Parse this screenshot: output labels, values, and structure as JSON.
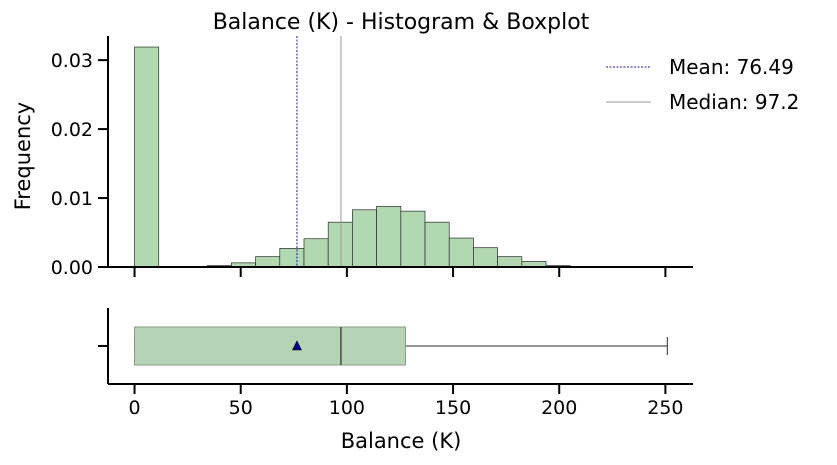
{
  "chart_data": {
    "type": "histogram",
    "title": "Balance (K) - Histogram & Boxplot",
    "xlabel": "Balance (K)",
    "ylabel": "Frequency",
    "xlim": [
      -12.5,
      263
    ],
    "ylim": [
      0,
      0.0335
    ],
    "x_ticks": [
      0,
      50,
      100,
      150,
      200,
      250
    ],
    "y_ticks": [
      0.0,
      0.01,
      0.02,
      0.03
    ],
    "y_tick_labels": [
      "0.00",
      "0.01",
      "0.02",
      "0.03"
    ],
    "bar_color": "#b2d8b2",
    "bins": [
      {
        "x0": 0,
        "x1": 11.4,
        "density": 0.0319
      },
      {
        "x0": 11.4,
        "x1": 22.8,
        "density": 0.0
      },
      {
        "x0": 22.8,
        "x1": 34.2,
        "density": 3e-05
      },
      {
        "x0": 34.2,
        "x1": 45.6,
        "density": 0.0002
      },
      {
        "x0": 45.6,
        "x1": 57.0,
        "density": 0.0006
      },
      {
        "x0": 57.0,
        "x1": 68.4,
        "density": 0.0015
      },
      {
        "x0": 68.4,
        "x1": 79.8,
        "density": 0.0027
      },
      {
        "x0": 79.8,
        "x1": 91.2,
        "density": 0.0041
      },
      {
        "x0": 91.2,
        "x1": 102.6,
        "density": 0.0065
      },
      {
        "x0": 102.6,
        "x1": 114.0,
        "density": 0.0083
      },
      {
        "x0": 114.0,
        "x1": 125.4,
        "density": 0.0088
      },
      {
        "x0": 125.4,
        "x1": 136.8,
        "density": 0.0081
      },
      {
        "x0": 136.8,
        "x1": 148.2,
        "density": 0.0065
      },
      {
        "x0": 148.2,
        "x1": 159.6,
        "density": 0.0042
      },
      {
        "x0": 159.6,
        "x1": 171.0,
        "density": 0.0028
      },
      {
        "x0": 171.0,
        "x1": 182.4,
        "density": 0.0015
      },
      {
        "x0": 182.4,
        "x1": 193.8,
        "density": 0.0008
      },
      {
        "x0": 193.8,
        "x1": 205.2,
        "density": 0.0002
      },
      {
        "x0": 205.2,
        "x1": 216.6,
        "density": 5e-05
      },
      {
        "x0": 216.6,
        "x1": 228.0,
        "density": 0.0
      },
      {
        "x0": 228.0,
        "x1": 239.4,
        "density": 2e-05
      },
      {
        "x0": 239.4,
        "x1": 250.8,
        "density": 1e-05
      }
    ],
    "mean": {
      "value": 76.49,
      "label": "Mean: 76.49",
      "color": "#1a1aa6"
    },
    "median": {
      "value": 97.2,
      "label": "Median: 97.2",
      "color": "#9a9a9a"
    },
    "legend_position": "top-right",
    "boxplot": {
      "whisker_low": 0,
      "q1": 0,
      "median": 97.2,
      "q3": 127.6,
      "whisker_high": 250.9,
      "mean": 76.49,
      "box_color": "#b5d4b5",
      "mean_marker_color": "#00008b"
    }
  }
}
